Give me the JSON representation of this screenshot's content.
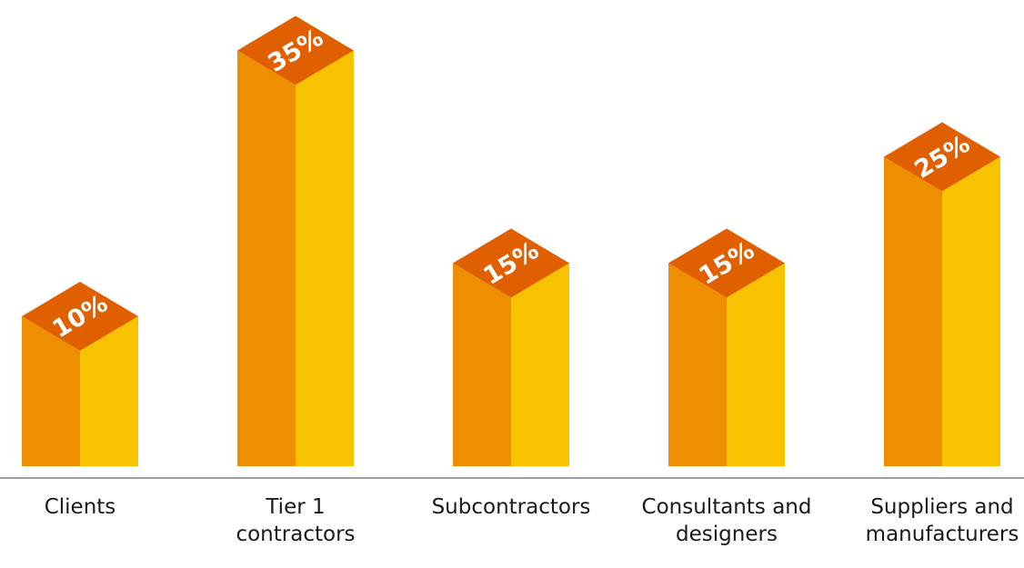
{
  "chart_data": {
    "type": "bar",
    "title": "",
    "xlabel": "",
    "ylabel": "",
    "categories": [
      [
        "Clients"
      ],
      [
        "Tier 1",
        "contractors"
      ],
      [
        "Subcontractors"
      ],
      [
        "Consultants and",
        "designers"
      ],
      [
        "Suppliers and",
        "manufacturers"
      ]
    ],
    "values": [
      10,
      35,
      15,
      15,
      25
    ],
    "value_labels": [
      "10%",
      "35%",
      "15%",
      "15%",
      "25%"
    ],
    "ylim": [
      0,
      35
    ],
    "grid": false,
    "colors": {
      "left_face": "#ED8F00",
      "right_face": "#F7C200",
      "top_face": "#E06000",
      "baseline": "#9E9E9E"
    }
  }
}
